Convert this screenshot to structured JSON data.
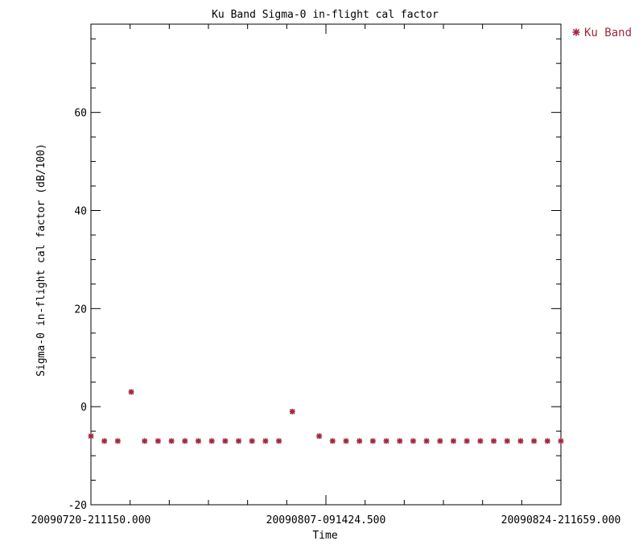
{
  "chart_data": {
    "type": "scatter",
    "title": "Ku Band Sigma-0 in-flight  cal factor",
    "xlabel": "Time",
    "ylabel": "Sigma-0 in-flight cal factor (dB/100)",
    "xlim": [
      "20090720-211150.000",
      "20090824-211659.000"
    ],
    "ylim": [
      -20,
      78
    ],
    "x_tick_labels": [
      "20090720-211150.000",
      "20090807-091424.500",
      "20090824-211659.000"
    ],
    "y_ticks": [
      -20,
      0,
      20,
      40,
      60
    ],
    "y_minor_step": 5,
    "x_minor_ticks": 6,
    "grid": false,
    "legend_position": "outside top-right",
    "series": [
      {
        "name": "Ku Band",
        "marker": "asterisk",
        "color": "#a3283f",
        "x": [
          "2009-07-20 21:11:50",
          "2009-07-21 21:11:50",
          "2009-07-22 21:11:50",
          "2009-07-23 21:11:50",
          "2009-07-24 21:11:50",
          "2009-07-25 21:11:50",
          "2009-07-26 21:11:50",
          "2009-07-27 21:11:50",
          "2009-07-28 21:11:50",
          "2009-07-29 21:11:50",
          "2009-07-30 21:11:50",
          "2009-07-31 21:11:50",
          "2009-08-01 21:11:50",
          "2009-08-02 21:11:50",
          "2009-08-03 21:11:50",
          "2009-08-04 21:11:50",
          "2009-08-06 21:11:50",
          "2009-08-07 21:11:50",
          "2009-08-08 21:11:50",
          "2009-08-09 21:11:50",
          "2009-08-10 21:11:50",
          "2009-08-11 21:11:50",
          "2009-08-12 21:11:50",
          "2009-08-13 21:11:50",
          "2009-08-14 21:11:50",
          "2009-08-15 21:11:50",
          "2009-08-16 21:11:50",
          "2009-08-17 21:11:50",
          "2009-08-18 21:11:50",
          "2009-08-19 21:11:50",
          "2009-08-20 21:11:50",
          "2009-08-21 21:11:50",
          "2009-08-22 21:11:50",
          "2009-08-23 21:11:50",
          "2009-08-24 21:11:50"
        ],
        "y": [
          -6,
          -7,
          -7,
          3,
          -7,
          -7,
          -7,
          -7,
          -7,
          -7,
          -7,
          -7,
          -7,
          -7,
          -7,
          -1,
          -6,
          -7,
          -7,
          -7,
          -7,
          -7,
          -7,
          -7,
          -7,
          -7,
          -7,
          -7,
          -7,
          -7,
          -7,
          -7,
          -7,
          -7,
          -7
        ]
      }
    ]
  }
}
